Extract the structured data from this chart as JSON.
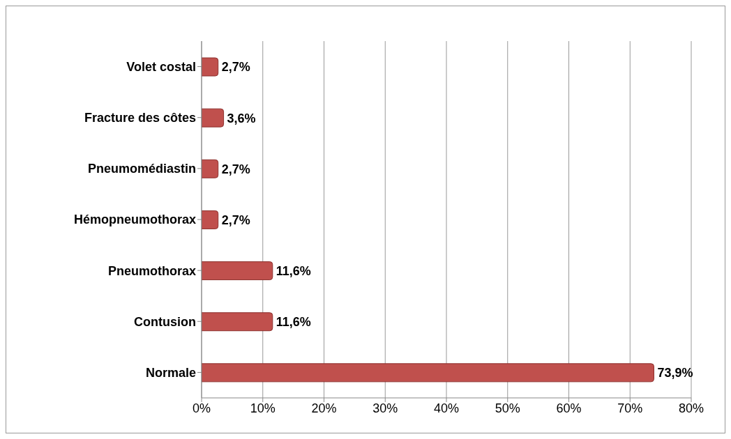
{
  "chart_data": {
    "type": "bar",
    "orientation": "horizontal",
    "categories": [
      "Volet costal",
      "Fracture des côtes",
      "Pneumomédiastin",
      "Hémopneumothorax",
      "Pneumothorax",
      "Contusion",
      "Normale"
    ],
    "values": [
      2.7,
      3.6,
      2.7,
      2.7,
      11.6,
      11.6,
      73.9
    ],
    "value_labels": [
      "2,7%",
      "3,6%",
      "2,7%",
      "2,7%",
      "11,6%",
      "11,6%",
      "73,9%"
    ],
    "color": "#c0504d",
    "xlim": [
      0,
      80
    ],
    "xticks": [
      {
        "value": 0,
        "label": "0%"
      },
      {
        "value": 10,
        "label": "10%"
      },
      {
        "value": 20,
        "label": "20%"
      },
      {
        "value": 30,
        "label": "30%"
      },
      {
        "value": 40,
        "label": "40%"
      },
      {
        "value": 50,
        "label": "50%"
      },
      {
        "value": 60,
        "label": "60%"
      },
      {
        "value": 70,
        "label": "70%"
      },
      {
        "value": 80,
        "label": "80%"
      }
    ],
    "grid": "x",
    "legend": false
  }
}
